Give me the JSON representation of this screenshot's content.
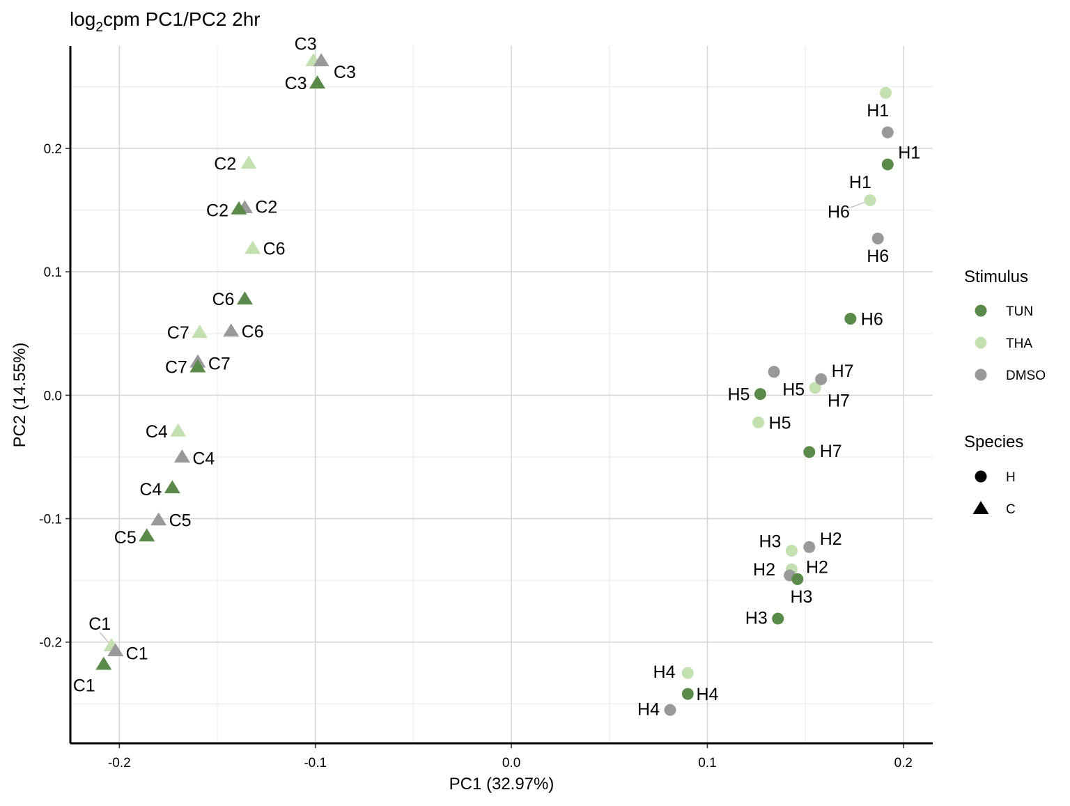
{
  "chart_data": {
    "type": "scatter",
    "title": {
      "base": "log",
      "subscript": "2",
      "rest": "cpm PC1/PC2 2hr"
    },
    "xlabel": "PC1 (32.97%)",
    "ylabel": "PC2 (14.55%)",
    "xlim": [
      -0.225,
      0.215
    ],
    "ylim": [
      -0.282,
      0.283
    ],
    "xticks": [
      -0.2,
      -0.1,
      0.0,
      0.1,
      0.2
    ],
    "xtick_labels": [
      "-0.2",
      "-0.1",
      "0.0",
      "0.1",
      "0.2"
    ],
    "yticks": [
      -0.2,
      -0.1,
      0.0,
      0.1,
      0.2
    ],
    "ytick_labels": [
      "-0.2",
      "-0.1",
      "0.0",
      "0.1",
      "0.2"
    ],
    "grid": true,
    "legend_position": "right",
    "colors": {
      "TUN": "#5a8a4a",
      "THA": "#c3e0b0",
      "DMSO": "#999999"
    },
    "legend": {
      "stimulus_title": "Stimulus",
      "stimulus": [
        "TUN",
        "THA",
        "DMSO"
      ],
      "species_title": "Species",
      "species": [
        {
          "label": "H",
          "shape": "circle"
        },
        {
          "label": "C",
          "shape": "triangle"
        }
      ]
    },
    "points": [
      {
        "label": "C3",
        "species": "C",
        "stimulus": "THA",
        "x": -0.101,
        "y": 0.271,
        "lx": -0.105,
        "ly": 0.285
      },
      {
        "label": "C3",
        "species": "C",
        "stimulus": "DMSO",
        "x": -0.097,
        "y": 0.271,
        "lx": -0.085,
        "ly": 0.262
      },
      {
        "label": "C3",
        "species": "C",
        "stimulus": "TUN",
        "x": -0.099,
        "y": 0.253,
        "lx": -0.11,
        "ly": 0.253
      },
      {
        "label": "C2",
        "species": "C",
        "stimulus": "THA",
        "x": -0.134,
        "y": 0.188,
        "lx": -0.146,
        "ly": 0.188
      },
      {
        "label": "C2",
        "species": "C",
        "stimulus": "TUN",
        "x": -0.139,
        "y": 0.151,
        "lx": -0.15,
        "ly": 0.15
      },
      {
        "label": "C2",
        "species": "C",
        "stimulus": "DMSO",
        "x": -0.136,
        "y": 0.152,
        "lx": -0.125,
        "ly": 0.153
      },
      {
        "label": "C6",
        "species": "C",
        "stimulus": "THA",
        "x": -0.132,
        "y": 0.119,
        "lx": -0.121,
        "ly": 0.119
      },
      {
        "label": "C6",
        "species": "C",
        "stimulus": "TUN",
        "x": -0.136,
        "y": 0.078,
        "lx": -0.147,
        "ly": 0.078
      },
      {
        "label": "C6",
        "species": "C",
        "stimulus": "DMSO",
        "x": -0.143,
        "y": 0.052,
        "lx": -0.132,
        "ly": 0.052
      },
      {
        "label": "C7",
        "species": "C",
        "stimulus": "THA",
        "x": -0.159,
        "y": 0.051,
        "lx": -0.17,
        "ly": 0.051
      },
      {
        "label": "C7",
        "species": "C",
        "stimulus": "DMSO",
        "x": -0.16,
        "y": 0.027,
        "lx": -0.149,
        "ly": 0.026
      },
      {
        "label": "C7",
        "species": "C",
        "stimulus": "TUN",
        "x": -0.16,
        "y": 0.023,
        "lx": -0.171,
        "ly": 0.023
      },
      {
        "label": "C4",
        "species": "C",
        "stimulus": "THA",
        "x": -0.17,
        "y": -0.029,
        "lx": -0.181,
        "ly": -0.029
      },
      {
        "label": "C4",
        "species": "C",
        "stimulus": "DMSO",
        "x": -0.168,
        "y": -0.05,
        "lx": -0.157,
        "ly": -0.051
      },
      {
        "label": "C4",
        "species": "C",
        "stimulus": "TUN",
        "x": -0.173,
        "y": -0.075,
        "lx": -0.184,
        "ly": -0.076
      },
      {
        "label": "C5",
        "species": "C",
        "stimulus": "DMSO",
        "x": -0.18,
        "y": -0.101,
        "lx": -0.169,
        "ly": -0.101
      },
      {
        "label": "C5",
        "species": "C",
        "stimulus": "TUN",
        "x": -0.186,
        "y": -0.114,
        "lx": -0.197,
        "ly": -0.115
      },
      {
        "label": "C1",
        "species": "C",
        "stimulus": "THA",
        "x": -0.204,
        "y": -0.203,
        "lx": -0.21,
        "ly": -0.185
      },
      {
        "label": "C1",
        "species": "C",
        "stimulus": "DMSO",
        "x": -0.202,
        "y": -0.207,
        "lx": -0.191,
        "ly": -0.209
      },
      {
        "label": "C1",
        "species": "C",
        "stimulus": "TUN",
        "x": -0.208,
        "y": -0.218,
        "lx": -0.218,
        "ly": -0.235
      },
      {
        "label": "H1",
        "species": "H",
        "stimulus": "THA",
        "x": 0.191,
        "y": 0.245,
        "lx": 0.187,
        "ly": 0.231
      },
      {
        "label": "H1",
        "species": "H",
        "stimulus": "DMSO",
        "x": 0.192,
        "y": 0.213
      },
      {
        "label": "H1",
        "species": "H",
        "stimulus": "TUN",
        "x": 0.192,
        "y": 0.187,
        "lx": 0.203,
        "ly": 0.197
      },
      {
        "label": "H1",
        "species": "H",
        "stimulus": "THA",
        "x": 0.183,
        "y": 0.158,
        "lx": 0.178,
        "ly": 0.173
      },
      {
        "label": "H6",
        "species": "H",
        "stimulus": "THA",
        "x": 0.183,
        "y": 0.158,
        "lx": 0.167,
        "ly": 0.149,
        "nomark": true
      },
      {
        "label": "H6",
        "species": "H",
        "stimulus": "DMSO",
        "x": 0.187,
        "y": 0.127,
        "lx": 0.187,
        "ly": 0.113
      },
      {
        "label": "H6",
        "species": "H",
        "stimulus": "TUN",
        "x": 0.173,
        "y": 0.062,
        "lx": 0.184,
        "ly": 0.062
      },
      {
        "label": "H7",
        "species": "H",
        "stimulus": "DMSO",
        "x": 0.158,
        "y": 0.013,
        "lx": 0.169,
        "ly": 0.02
      },
      {
        "label": "H7",
        "species": "H",
        "stimulus": "THA",
        "x": 0.155,
        "y": 0.006,
        "lx": 0.167,
        "ly": -0.004
      },
      {
        "label": "",
        "species": "H",
        "stimulus": "DMSO",
        "x": 0.134,
        "y": 0.019
      },
      {
        "label": "H5",
        "species": "H",
        "stimulus": "TUN",
        "x": 0.127,
        "y": 0.001,
        "lx": 0.116,
        "ly": 0.001
      },
      {
        "label": "H5",
        "species": "H",
        "stimulus": "THA",
        "x": 0.155,
        "y": 0.006,
        "lx": 0.144,
        "ly": 0.005,
        "nomark": true
      },
      {
        "label": "H5",
        "species": "H",
        "stimulus": "THA",
        "x": 0.126,
        "y": -0.022,
        "lx": 0.137,
        "ly": -0.022
      },
      {
        "label": "H7",
        "species": "H",
        "stimulus": "TUN",
        "x": 0.152,
        "y": -0.046,
        "lx": 0.163,
        "ly": -0.045
      },
      {
        "label": "H2",
        "species": "H",
        "stimulus": "DMSO",
        "x": 0.152,
        "y": -0.123,
        "lx": 0.163,
        "ly": -0.116
      },
      {
        "label": "H3",
        "species": "H",
        "stimulus": "THA",
        "x": 0.143,
        "y": -0.126,
        "lx": 0.132,
        "ly": -0.118
      },
      {
        "label": "H2",
        "species": "H",
        "stimulus": "THA",
        "x": 0.143,
        "y": -0.141,
        "lx": 0.156,
        "ly": -0.139
      },
      {
        "label": "H2",
        "species": "H",
        "stimulus": "DMSO",
        "x": 0.142,
        "y": -0.146,
        "lx": 0.129,
        "ly": -0.141
      },
      {
        "label": "H3",
        "species": "H",
        "stimulus": "TUN",
        "x": 0.146,
        "y": -0.149,
        "lx": 0.148,
        "ly": -0.163
      },
      {
        "label": "H3",
        "species": "H",
        "stimulus": "TUN",
        "x": 0.136,
        "y": -0.181,
        "lx": 0.125,
        "ly": -0.18
      },
      {
        "label": "H4",
        "species": "H",
        "stimulus": "THA",
        "x": 0.09,
        "y": -0.225,
        "lx": 0.078,
        "ly": -0.224
      },
      {
        "label": "H4",
        "species": "H",
        "stimulus": "TUN",
        "x": 0.09,
        "y": -0.242,
        "lx": 0.1,
        "ly": -0.242
      },
      {
        "label": "H4",
        "species": "H",
        "stimulus": "DMSO",
        "x": 0.081,
        "y": -0.255,
        "lx": 0.07,
        "ly": -0.254
      }
    ]
  }
}
